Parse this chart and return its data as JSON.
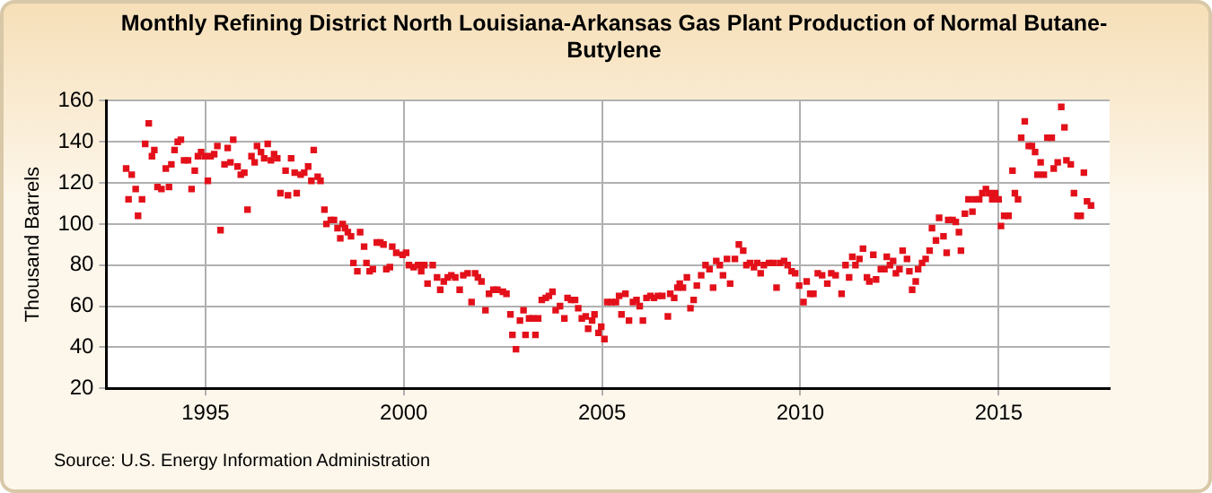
{
  "chart_data": {
    "type": "scatter",
    "title": "Monthly Refining District North Louisiana-Arkansas Gas Plant Production of Normal Butane-Butylene",
    "ylabel": "Thousand Barrels",
    "annotations": [
      "Source: U.S. Energy Information Administration"
    ],
    "x": [
      1993.0,
      1993.06,
      1993.14,
      1993.24,
      1993.3,
      1993.4,
      1993.48,
      1993.57,
      1993.65,
      1993.71,
      1993.79,
      1993.89,
      1994.0,
      1994.08,
      1994.14,
      1994.22,
      1994.3,
      1994.38,
      1994.46,
      1994.56,
      1994.65,
      1994.73,
      1994.81,
      1994.89,
      1994.98,
      1995.06,
      1995.13,
      1995.22,
      1995.3,
      1995.38,
      1995.48,
      1995.56,
      1995.63,
      1995.7,
      1995.81,
      1995.89,
      1995.98,
      1996.06,
      1996.16,
      1996.24,
      1996.3,
      1996.4,
      1996.48,
      1996.57,
      1996.65,
      1996.73,
      1996.81,
      1996.89,
      1997.02,
      1997.08,
      1997.16,
      1997.25,
      1997.3,
      1997.4,
      1997.49,
      1997.59,
      1997.67,
      1997.73,
      1997.83,
      1997.9,
      1998.0,
      1998.05,
      1998.16,
      1998.24,
      1998.33,
      1998.4,
      1998.46,
      1998.52,
      1998.59,
      1998.67,
      1998.73,
      1998.83,
      1998.9,
      1999.0,
      1999.06,
      1999.14,
      1999.22,
      1999.32,
      1999.41,
      1999.49,
      1999.56,
      1999.65,
      1999.71,
      1999.81,
      1999.97,
      2000.06,
      2000.13,
      2000.25,
      2000.36,
      2000.44,
      2000.52,
      2000.6,
      2000.73,
      2000.84,
      2000.92,
      2001.01,
      2001.11,
      2001.2,
      2001.3,
      2001.41,
      2001.5,
      2001.61,
      2001.71,
      2001.8,
      2001.87,
      2001.96,
      2002.06,
      2002.15,
      2002.26,
      2002.36,
      2002.5,
      2002.59,
      2002.69,
      2002.74,
      2002.83,
      2002.93,
      2003.02,
      2003.07,
      2003.16,
      2003.26,
      2003.32,
      2003.39,
      2003.48,
      2003.58,
      2003.66,
      2003.75,
      2003.83,
      2003.94,
      2004.05,
      2004.13,
      2004.22,
      2004.32,
      2004.4,
      2004.49,
      2004.59,
      2004.65,
      2004.75,
      2004.81,
      2004.91,
      2004.98,
      2005.06,
      2005.13,
      2005.24,
      2005.35,
      2005.43,
      2005.49,
      2005.59,
      2005.68,
      2005.78,
      2005.87,
      2005.95,
      2006.03,
      2006.12,
      2006.22,
      2006.31,
      2006.41,
      2006.52,
      2006.66,
      2006.72,
      2006.82,
      2006.9,
      2006.96,
      2007.04,
      2007.14,
      2007.23,
      2007.31,
      2007.39,
      2007.5,
      2007.61,
      2007.71,
      2007.8,
      2007.88,
      2007.97,
      2008.05,
      2008.15,
      2008.23,
      2008.35,
      2008.45,
      2008.56,
      2008.64,
      2008.73,
      2008.83,
      2008.91,
      2009.0,
      2009.08,
      2009.21,
      2009.32,
      2009.4,
      2009.49,
      2009.59,
      2009.68,
      2009.78,
      2009.87,
      2009.97,
      2010.08,
      2010.16,
      2010.25,
      2010.33,
      2010.44,
      2010.55,
      2010.68,
      2010.78,
      2010.89,
      2011.04,
      2011.14,
      2011.23,
      2011.31,
      2011.39,
      2011.49,
      2011.58,
      2011.68,
      2011.74,
      2011.84,
      2011.91,
      2012.03,
      2012.12,
      2012.18,
      2012.26,
      2012.34,
      2012.41,
      2012.5,
      2012.58,
      2012.69,
      2012.75,
      2012.82,
      2012.91,
      2012.97,
      2013.07,
      2013.16,
      2013.26,
      2013.32,
      2013.42,
      2013.5,
      2013.61,
      2013.69,
      2013.73,
      2013.84,
      2013.92,
      2014.0,
      2014.05,
      2014.15,
      2014.24,
      2014.34,
      2014.4,
      2014.51,
      2014.59,
      2014.68,
      2014.76,
      2014.84,
      2014.91,
      2015.0,
      2015.06,
      2015.14,
      2015.25,
      2015.35,
      2015.41,
      2015.49,
      2015.57,
      2015.66,
      2015.76,
      2015.84,
      2015.92,
      2015.98,
      2016.06,
      2016.14,
      2016.23,
      2016.34,
      2016.39,
      2016.49,
      2016.58,
      2016.66,
      2016.71,
      2016.82,
      2016.9,
      2016.99,
      2017.07,
      2017.15,
      2017.23,
      2017.33
    ],
    "series": [
      {
        "color": "#e3101a",
        "values": [
          127,
          112,
          124,
          117,
          104,
          112,
          139,
          149,
          133,
          136,
          118,
          117,
          127,
          118,
          129,
          136,
          140,
          141,
          131,
          131,
          117,
          126,
          133,
          135,
          133,
          121,
          133,
          134,
          138,
          97,
          129,
          137,
          130,
          141,
          128,
          124,
          125,
          107,
          133,
          130,
          138,
          135,
          132,
          139,
          131,
          134,
          132,
          115,
          126,
          114,
          132,
          125,
          115,
          124,
          125,
          128,
          121,
          136,
          123,
          121,
          107,
          100,
          102,
          102,
          98,
          93,
          100,
          98,
          96,
          94,
          81,
          77,
          96,
          89,
          81,
          77,
          78,
          91,
          91,
          90,
          78,
          79,
          89,
          86,
          85,
          86,
          80,
          79,
          80,
          77,
          80,
          71,
          80,
          74,
          68,
          72,
          74,
          75,
          74,
          68,
          75,
          76,
          62,
          76,
          74,
          72,
          58,
          66,
          68,
          68,
          67,
          66,
          56,
          46,
          39,
          53,
          58,
          46,
          54,
          54,
          46,
          54,
          63,
          64,
          65,
          67,
          58,
          60,
          54,
          64,
          63,
          63,
          59,
          54,
          55,
          49,
          53,
          56,
          47,
          50,
          44,
          62,
          62,
          62,
          65,
          56,
          66,
          53,
          62,
          63,
          60,
          53,
          64,
          65,
          64,
          65,
          65,
          55,
          66,
          64,
          69,
          71,
          69,
          74,
          59,
          63,
          70,
          75,
          80,
          78,
          69,
          82,
          80,
          75,
          83,
          71,
          83,
          90,
          87,
          80,
          81,
          79,
          81,
          76,
          80,
          81,
          81,
          69,
          81,
          82,
          80,
          77,
          76,
          70,
          62,
          72,
          66,
          66,
          76,
          75,
          71,
          76,
          75,
          66,
          80,
          74,
          84,
          80,
          83,
          88,
          74,
          72,
          85,
          73,
          78,
          78,
          84,
          80,
          82,
          76,
          78,
          87,
          83,
          77,
          68,
          72,
          78,
          81,
          83,
          87,
          98,
          92,
          103,
          94,
          86,
          102,
          102,
          101,
          96,
          87,
          105,
          112,
          106,
          112,
          112,
          115,
          117,
          115,
          112,
          115,
          112,
          99,
          104,
          104,
          126,
          115,
          112,
          142,
          150,
          138,
          138,
          135,
          124,
          130,
          124,
          142,
          142,
          127,
          130,
          157,
          147,
          131,
          129,
          115,
          104,
          104,
          125,
          111,
          109
        ]
      }
    ],
    "marker": "square",
    "grid": true,
    "xlim": [
      1992.5,
      2017.8
    ],
    "xticks": [
      1995,
      2000,
      2005,
      2010,
      2015
    ],
    "ylim": [
      20,
      160
    ],
    "yticks": [
      20,
      40,
      60,
      80,
      100,
      120,
      140,
      160
    ]
  }
}
